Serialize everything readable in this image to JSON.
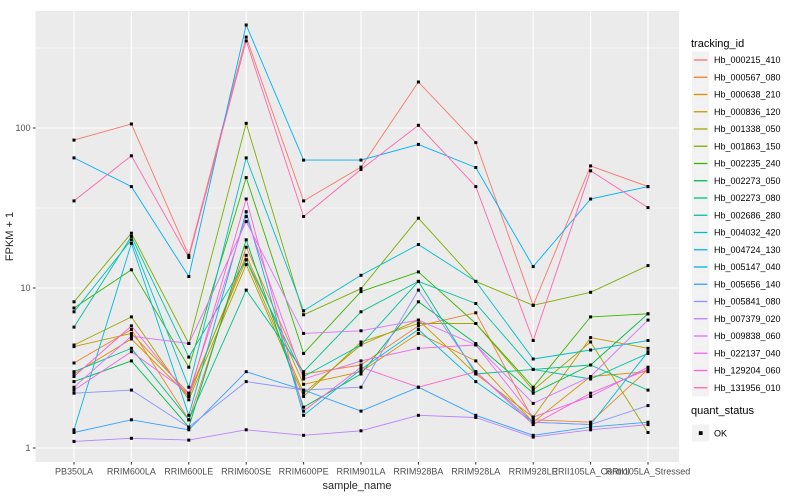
{
  "figure": {
    "x_axis": {
      "label": "sample_name"
    },
    "y_axis": {
      "label": "FPKM + 1",
      "tick_labels": [
        "1",
        "10",
        "100"
      ]
    },
    "legends": {
      "tracking": {
        "title": "tracking_id"
      },
      "quant": {
        "title": "quant_status",
        "items": [
          {
            "label": "OK",
            "symbol": "black-square"
          }
        ]
      }
    },
    "colors": {
      "panel_bg": "#EBEBEB",
      "gridline": "#FFFFFF",
      "tick_text": "#4D4D4D",
      "point": "#000000",
      "legend_key_bg": "#F2F2F2"
    }
  },
  "chart_data": {
    "type": "line",
    "scale": "log10",
    "title": "",
    "xlabel": "sample_name",
    "ylabel": "FPKM + 1",
    "y_ticks": [
      1,
      10,
      100
    ],
    "y_minor_gridlines": [
      3.162,
      31.62,
      316.2
    ],
    "ylim": [
      0.83,
      540
    ],
    "grid": "white-on-gray",
    "legend_position": "right",
    "points": "black-square-every-value",
    "categories": [
      "PB350LA",
      "RRIM600LA",
      "RRIM600LE",
      "RRIM600SE",
      "RRIM600PE",
      "RRIM901LA",
      "RRIM928BA",
      "RRIM928LA",
      "RRIM928LE",
      "RRII105LA_Control",
      "RRII105LA_Stressed"
    ],
    "series": [
      {
        "name": "Hb_000215_410",
        "color": "#F8766D",
        "values": [
          84,
          106,
          16,
          370,
          35,
          57,
          194,
          81,
          7.8,
          58,
          43
        ]
      },
      {
        "name": "Hb_000567_080",
        "color": "#EA8331",
        "values": [
          3.4,
          5.5,
          1.5,
          18,
          2.9,
          3.3,
          5.8,
          7.0,
          1.5,
          1.45,
          3.1
        ]
      },
      {
        "name": "Hb_000638_210",
        "color": "#D89000",
        "values": [
          2.9,
          4.8,
          2.1,
          16,
          2.5,
          3.0,
          5.2,
          3.5,
          1.45,
          2.8,
          3.0
        ]
      },
      {
        "name": "Hb_000836_120",
        "color": "#C09B00",
        "values": [
          4.3,
          5.2,
          2.2,
          15,
          2.2,
          4.4,
          6.3,
          2.9,
          1.56,
          4.9,
          4.2
        ]
      },
      {
        "name": "Hb_001338_050",
        "color": "#A3A500",
        "values": [
          4.4,
          6.6,
          2.0,
          14,
          2.1,
          4.6,
          6.0,
          6.0,
          2.3,
          4.6,
          1.25
        ]
      },
      {
        "name": "Hb_001863_150",
        "color": "#7CAE00",
        "values": [
          8.2,
          22,
          4.5,
          107,
          6.8,
          9.9,
          27.3,
          11,
          7.8,
          9.4,
          13.8
        ]
      },
      {
        "name": "Hb_002235_240",
        "color": "#39B600",
        "values": [
          7.5,
          13,
          3.2,
          49,
          3.9,
          9.5,
          12.6,
          6.0,
          2.4,
          6.6,
          6.9
        ]
      },
      {
        "name": "Hb_002273_050",
        "color": "#00BB4E",
        "values": [
          2.6,
          3.5,
          1.35,
          20,
          1.8,
          2.9,
          8.2,
          4.5,
          2.2,
          3.3,
          6.9
        ]
      },
      {
        "name": "Hb_002273_080",
        "color": "#00C087",
        "values": [
          3.0,
          4.2,
          1.5,
          9.7,
          3.0,
          7.1,
          11.0,
          2.9,
          3.1,
          3.3,
          2.3
        ]
      },
      {
        "name": "Hb_002686_280",
        "color": "#00C1A3",
        "values": [
          5.7,
          21,
          3.7,
          15,
          2.8,
          4.4,
          11.0,
          8.0,
          3.1,
          2.7,
          3.9
        ]
      },
      {
        "name": "Hb_004032_420",
        "color": "#00BFC4",
        "values": [
          7.1,
          20,
          2.4,
          65,
          7.2,
          12,
          18.7,
          11.0,
          3.6,
          4.1,
          4.7
        ]
      },
      {
        "name": "Hb_004724_130",
        "color": "#00BAE0",
        "values": [
          1.3,
          19,
          1.6,
          30,
          1.6,
          3.1,
          5.5,
          2.6,
          1.45,
          1.4,
          4.0
        ]
      },
      {
        "name": "Hb_005147_040",
        "color": "#00B0F6",
        "values": [
          65,
          43,
          11.8,
          440,
          63,
          63,
          79,
          56.6,
          13.6,
          36,
          43
        ]
      },
      {
        "name": "Hb_005656_140",
        "color": "#35A2FF",
        "values": [
          1.25,
          1.5,
          1.3,
          3.0,
          2.3,
          1.7,
          2.4,
          1.6,
          1.2,
          1.35,
          1.45
        ]
      },
      {
        "name": "Hb_005841_080",
        "color": "#8B93FF",
        "values": [
          2.2,
          2.3,
          1.35,
          2.6,
          2.3,
          2.4,
          9.7,
          3.0,
          1.45,
          1.4,
          1.84
        ]
      },
      {
        "name": "Hb_007379_020",
        "color": "#B983FF",
        "values": [
          1.1,
          1.15,
          1.12,
          1.3,
          1.2,
          1.28,
          1.6,
          1.55,
          1.17,
          1.3,
          1.4
        ]
      },
      {
        "name": "Hb_009838_060",
        "color": "#D875FE",
        "values": [
          2.4,
          5.0,
          4.5,
          26,
          5.2,
          5.4,
          6.3,
          4.4,
          1.9,
          2.8,
          6.3
        ]
      },
      {
        "name": "Hb_022137_040",
        "color": "#EF67EB",
        "values": [
          2.3,
          4.0,
          2.2,
          28,
          2.7,
          3.5,
          4.2,
          4.4,
          1.56,
          2.1,
          3.2
        ]
      },
      {
        "name": "Hb_129204_060",
        "color": "#FD61D1",
        "values": [
          2.8,
          5.8,
          2.1,
          36,
          1.7,
          3.2,
          2.4,
          3.0,
          1.4,
          2.2,
          3.1
        ]
      },
      {
        "name": "Hb_131956_010",
        "color": "#FF65AE",
        "values": [
          35,
          67,
          15.5,
          350,
          28,
          55,
          104,
          43,
          4.7,
          54,
          31.8
        ]
      }
    ]
  }
}
